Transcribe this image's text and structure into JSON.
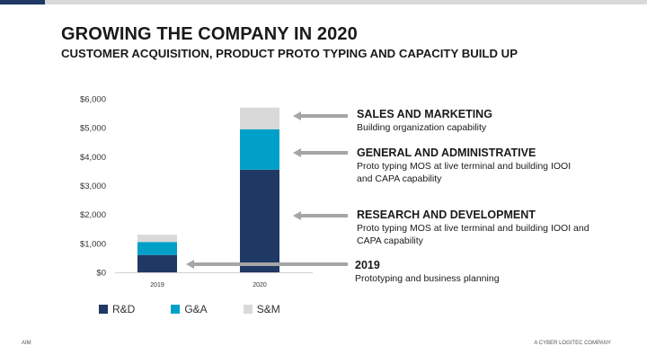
{
  "title": "GROWING THE COMPANY IN 2020",
  "subtitle": "CUSTOMER ACQUISITION, PRODUCT PROTO TYPING AND CAPACITY BUILD UP",
  "footer": {
    "left": "AIM",
    "right": "A CYBER LOGITEC COMPANY"
  },
  "annotations": [
    {
      "heading": "SALES AND MARKETING",
      "lines": [
        "Building organization capability"
      ]
    },
    {
      "heading": "GENERAL AND ADMINISTRATIVE",
      "lines": [
        "Proto typing MOS at live terminal and building IOOI",
        "and CAPA capability"
      ]
    },
    {
      "heading": "RESEARCH AND DEVELOPMENT",
      "lines": [
        "Proto typing MOS at live terminal and building IOOI and",
        "CAPA capability"
      ]
    },
    {
      "heading": "2019",
      "lines": [
        "Prototyping and business planning"
      ]
    }
  ],
  "colors": {
    "rd": "#203864",
    "ga": "#00a0c8",
    "sm": "#d9d9d9",
    "arrow": "#a6a6a6",
    "accent_dark": "#1f3864"
  },
  "chart_data": {
    "type": "bar",
    "stacked": true,
    "categories": [
      "2019",
      "2020"
    ],
    "series": [
      {
        "name": "R&D",
        "values": [
          600,
          3550
        ]
      },
      {
        "name": "G&A",
        "values": [
          450,
          1400
        ]
      },
      {
        "name": "S&M",
        "values": [
          250,
          750
        ]
      }
    ],
    "ylim": [
      0,
      6000
    ],
    "yticks": [
      "$0",
      "$1,000",
      "$2,000",
      "$3,000",
      "$4,000",
      "$5,000",
      "$6,000"
    ],
    "legend_position": "bottom",
    "grid": false
  }
}
